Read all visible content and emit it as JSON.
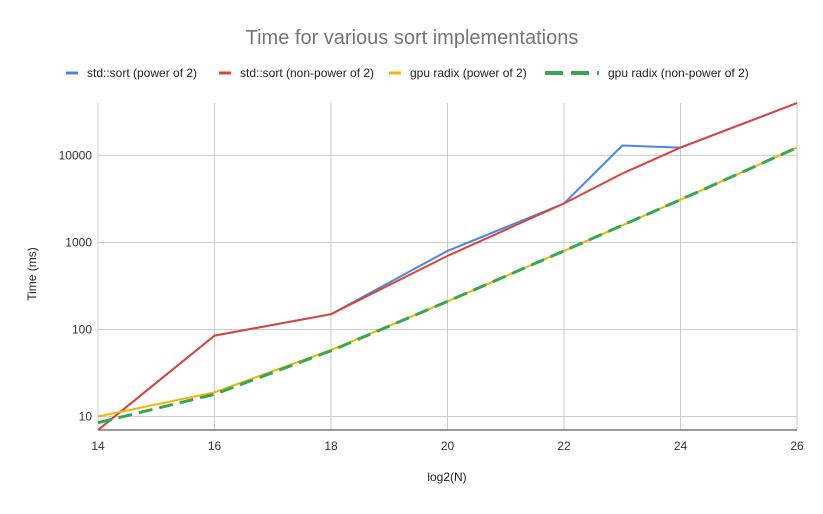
{
  "chart_data": {
    "type": "line",
    "title": "Time for various sort implementations",
    "xlabel": "log2(N)",
    "ylabel": "Time (ms)",
    "y_scale": "log",
    "xlim": [
      14,
      26
    ],
    "ylim": [
      7,
      40000
    ],
    "x_ticks": [
      14,
      16,
      18,
      20,
      22,
      24,
      26
    ],
    "y_ticks": [
      10,
      100,
      1000,
      10000
    ],
    "grid": true,
    "legend_position": "top",
    "series": [
      {
        "name": "std::sort (power of 2)",
        "color": "#4a86e8",
        "style": "solid",
        "x": [
          14,
          16,
          18,
          20,
          22,
          23,
          24,
          26
        ],
        "values": [
          7,
          85,
          150,
          800,
          2800,
          13000,
          12300,
          40000
        ]
      },
      {
        "name": "std::sort (non-power of 2)",
        "color": "#db4437",
        "style": "solid",
        "x": [
          14,
          16,
          18,
          20,
          22,
          23,
          24,
          26
        ],
        "values": [
          7,
          85,
          150,
          700,
          2800,
          6200,
          12300,
          40000
        ]
      },
      {
        "name": "gpu radix (power of 2)",
        "color": "#f4b400",
        "style": "solid",
        "x": [
          14,
          16,
          18,
          20,
          22,
          24,
          26
        ],
        "values": [
          10,
          19,
          58,
          210,
          800,
          3100,
          12300
        ]
      },
      {
        "name": "gpu radix (non-power of 2)",
        "color": "#34a853",
        "style": "dashed",
        "x": [
          14,
          16,
          18,
          20,
          22,
          24,
          26
        ],
        "values": [
          8.5,
          18,
          57,
          210,
          800,
          3100,
          12300
        ]
      }
    ]
  }
}
